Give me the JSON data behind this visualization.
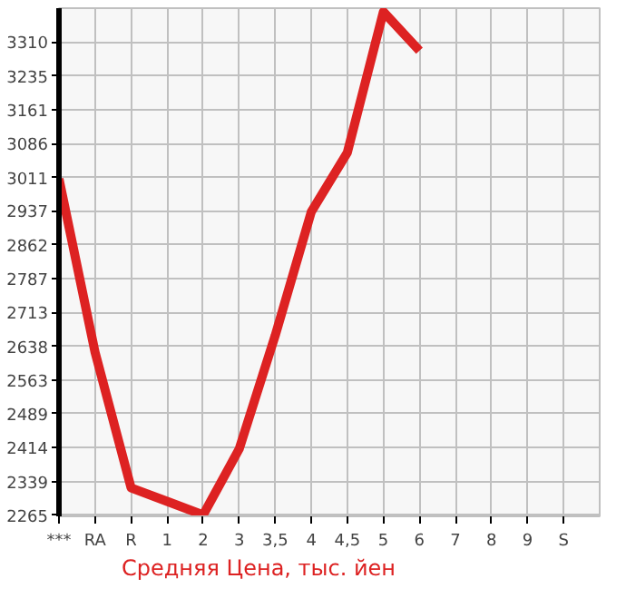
{
  "chart_data": {
    "type": "line",
    "categories": [
      "***",
      "RA",
      "R",
      "1",
      "2",
      "3",
      "3,5",
      "4",
      "4,5",
      "5",
      "6",
      "7",
      "8",
      "9",
      "S"
    ],
    "series": [
      {
        "name": "Средняя Цена, тыс. йен",
        "color": "#dd2222",
        "values": [
          3008,
          2625,
          2325,
          2295,
          2265,
          2411,
          2662,
          2935,
          3066,
          3377,
          3291,
          null,
          null,
          null,
          null
        ]
      }
    ],
    "ylim": [
      2262,
      3385
    ],
    "yticks": [
      2265,
      2339,
      2414,
      2489,
      2563,
      2638,
      2713,
      2787,
      2862,
      2937,
      3011,
      3086,
      3161,
      3235,
      3310
    ],
    "grid": true,
    "legend": "bottom",
    "marker": "none",
    "line_style": "solid"
  }
}
